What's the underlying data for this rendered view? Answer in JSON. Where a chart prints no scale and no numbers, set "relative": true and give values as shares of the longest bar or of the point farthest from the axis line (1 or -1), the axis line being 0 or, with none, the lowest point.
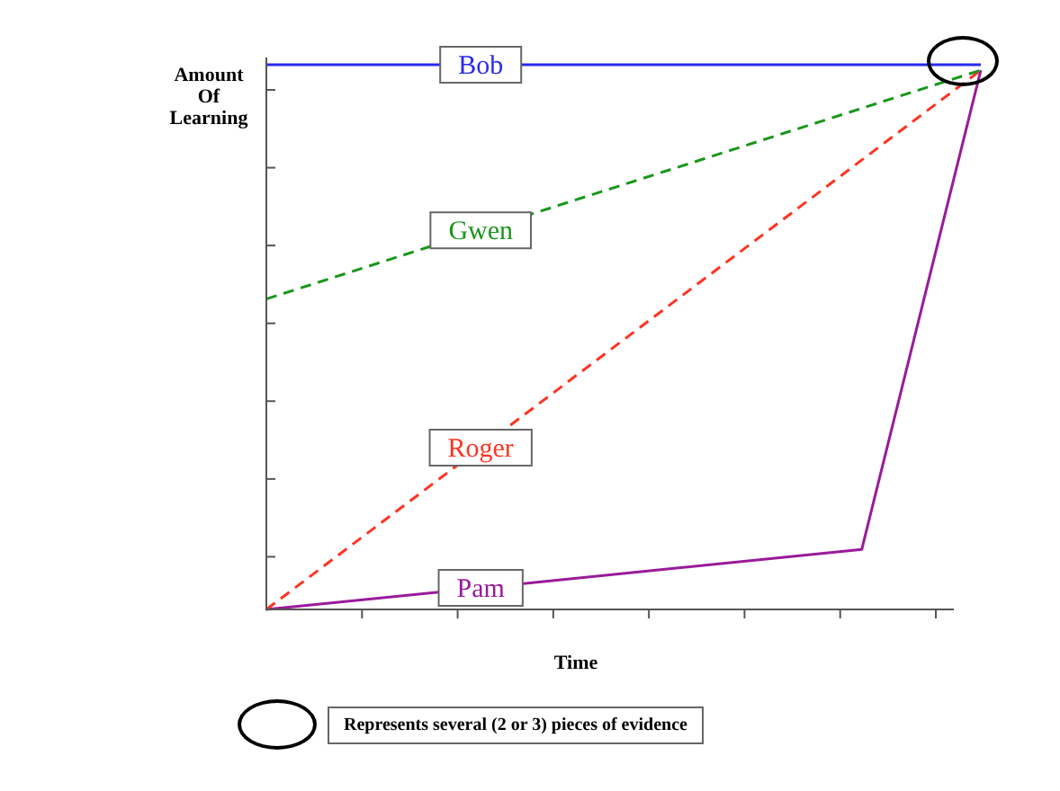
{
  "chart_data": {
    "type": "line",
    "xlabel": "Time",
    "ylabel": "Amount Of Learning",
    "relative": true,
    "legend": false,
    "marker": "none",
    "categories": [
      null,
      null,
      null,
      null,
      null,
      null,
      null
    ],
    "series": [
      {
        "name": "Bob",
        "color": "#2a2af0",
        "line_style": "solid",
        "values": [
          1,
          null,
          null,
          null,
          null,
          null,
          1
        ]
      },
      {
        "name": "Gwen",
        "color": "#1a961a",
        "line_style": "dashed",
        "values": [
          0.57,
          null,
          null,
          null,
          null,
          null,
          0.99
        ]
      },
      {
        "name": "Roger",
        "color": "#ff3322",
        "line_style": "dashed",
        "values": [
          0,
          null,
          null,
          null,
          null,
          null,
          0.99
        ]
      },
      {
        "name": "Pam",
        "color": "#9a1a9a",
        "line_style": "solid",
        "values": [
          0,
          null,
          null,
          null,
          null,
          0.11,
          0.99
        ]
      }
    ],
    "annotations": [
      "Represents several (2 or 3) pieces of evidence"
    ]
  }
}
